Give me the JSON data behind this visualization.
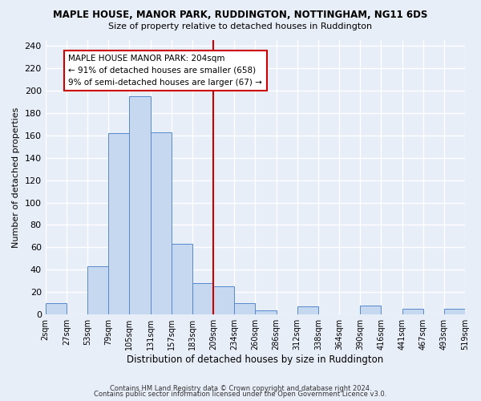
{
  "title": "MAPLE HOUSE, MANOR PARK, RUDDINGTON, NOTTINGHAM, NG11 6DS",
  "subtitle": "Size of property relative to detached houses in Ruddington",
  "xlabel": "Distribution of detached houses by size in Ruddington",
  "ylabel": "Number of detached properties",
  "bin_labels": [
    "2sqm",
    "27sqm",
    "53sqm",
    "79sqm",
    "105sqm",
    "131sqm",
    "157sqm",
    "183sqm",
    "209sqm",
    "234sqm",
    "260sqm",
    "286sqm",
    "312sqm",
    "338sqm",
    "364sqm",
    "390sqm",
    "416sqm",
    "441sqm",
    "467sqm",
    "493sqm",
    "519sqm"
  ],
  "bar_heights": [
    10,
    0,
    43,
    162,
    195,
    163,
    63,
    28,
    25,
    10,
    4,
    0,
    7,
    0,
    0,
    8,
    0,
    5,
    0,
    5,
    0
  ],
  "bar_color": "#c5d8f0",
  "bar_edge_color": "#5588cc",
  "vline_index": 8,
  "vline_color": "#cc0000",
  "annotation_text": "MAPLE HOUSE MANOR PARK: 204sqm\n← 91% of detached houses are smaller (658)\n9% of semi-detached houses are larger (67) →",
  "annotation_box_color": "#ffffff",
  "annotation_box_edge": "#cc0000",
  "ylim": [
    0,
    245
  ],
  "yticks": [
    0,
    20,
    40,
    60,
    80,
    100,
    120,
    140,
    160,
    180,
    200,
    220,
    240
  ],
  "footer_line1": "Contains HM Land Registry data © Crown copyright and database right 2024.",
  "footer_line2": "Contains public sector information licensed under the Open Government Licence v3.0.",
  "bg_color": "#e8eef8",
  "grid_color": "#ffffff",
  "plot_bg_color": "#e8eef8"
}
